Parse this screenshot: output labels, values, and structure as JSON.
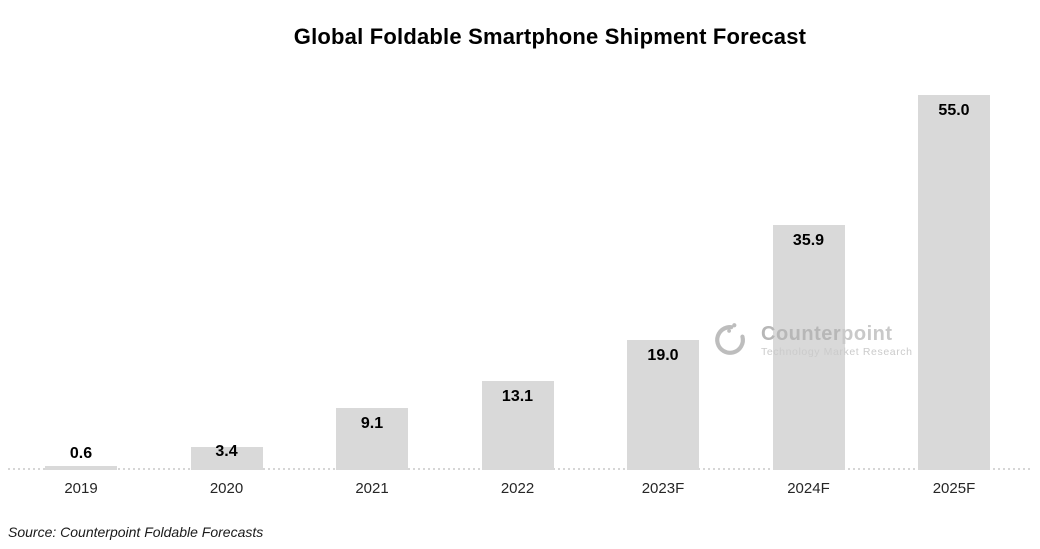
{
  "chart": {
    "title": "Global Foldable Smartphone Shipment Forecast",
    "source": "Source: Counterpoint Foldable Forecasts"
  },
  "chart_data": {
    "type": "bar",
    "title": "Global Foldable Smartphone Shipment Forecast",
    "categories": [
      "2019",
      "2020",
      "2021",
      "2022",
      "2023F",
      "2024F",
      "2025F"
    ],
    "values": [
      0.6,
      3.4,
      9.1,
      13.1,
      19.0,
      35.9,
      55.0
    ],
    "labels": [
      "0.6",
      "3.4",
      "9.1",
      "13.1",
      "19.0",
      "35.9",
      "55.0"
    ],
    "xlabel": "",
    "ylabel": "",
    "ylim": [
      0,
      60
    ],
    "grid": false,
    "legend": false,
    "y_axis_visible": false,
    "bar_color": "#d9d9d9",
    "data_label_color": "#000000",
    "axis_line_color": "#d6d6d6"
  },
  "watermark": {
    "brand_bold": "Counter",
    "brand_light": "point",
    "tagline": "Technology Market Research",
    "color": "#bdbdbd"
  }
}
